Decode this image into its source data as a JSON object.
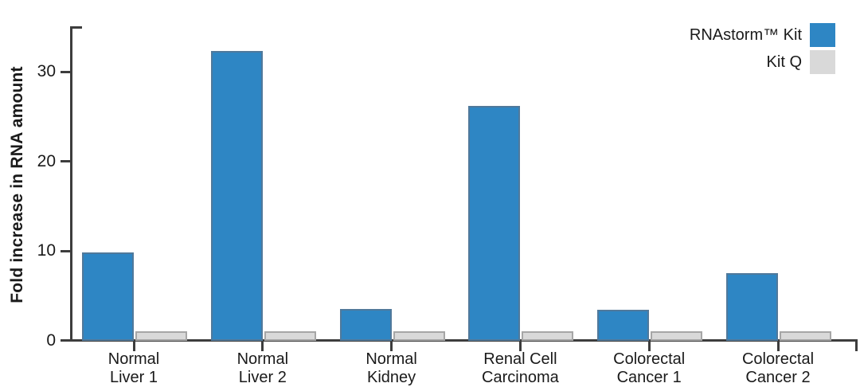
{
  "chart_data": {
    "type": "bar",
    "title": "",
    "xlabel": "",
    "ylabel": "Fold increase in RNA amount",
    "ylim": [
      0,
      35
    ],
    "yticks": [
      0,
      10,
      20,
      30
    ],
    "grid": false,
    "legend_position": "top-right",
    "axis_color": "#3d3d3d",
    "text_color": "#1a1a1a",
    "categories": [
      "Normal\nLiver 1",
      "Normal\nLiver 2",
      "Normal\nKidney",
      "Renal Cell\nCarcinoma",
      "Colorectal\nCancer 1",
      "Colorectal\nCancer 2"
    ],
    "series": [
      {
        "name": "RNAstorm™ Kit",
        "color": "#2e86c4",
        "border_color": "#50799b",
        "values": [
          9.8,
          32.3,
          3.5,
          26.2,
          3.4,
          7.5
        ]
      },
      {
        "name": "Kit Q",
        "color": "#d9d9d9",
        "border_color": "#a6a6a6",
        "values": [
          1.0,
          1.0,
          1.0,
          1.0,
          1.0,
          1.0
        ]
      }
    ]
  }
}
